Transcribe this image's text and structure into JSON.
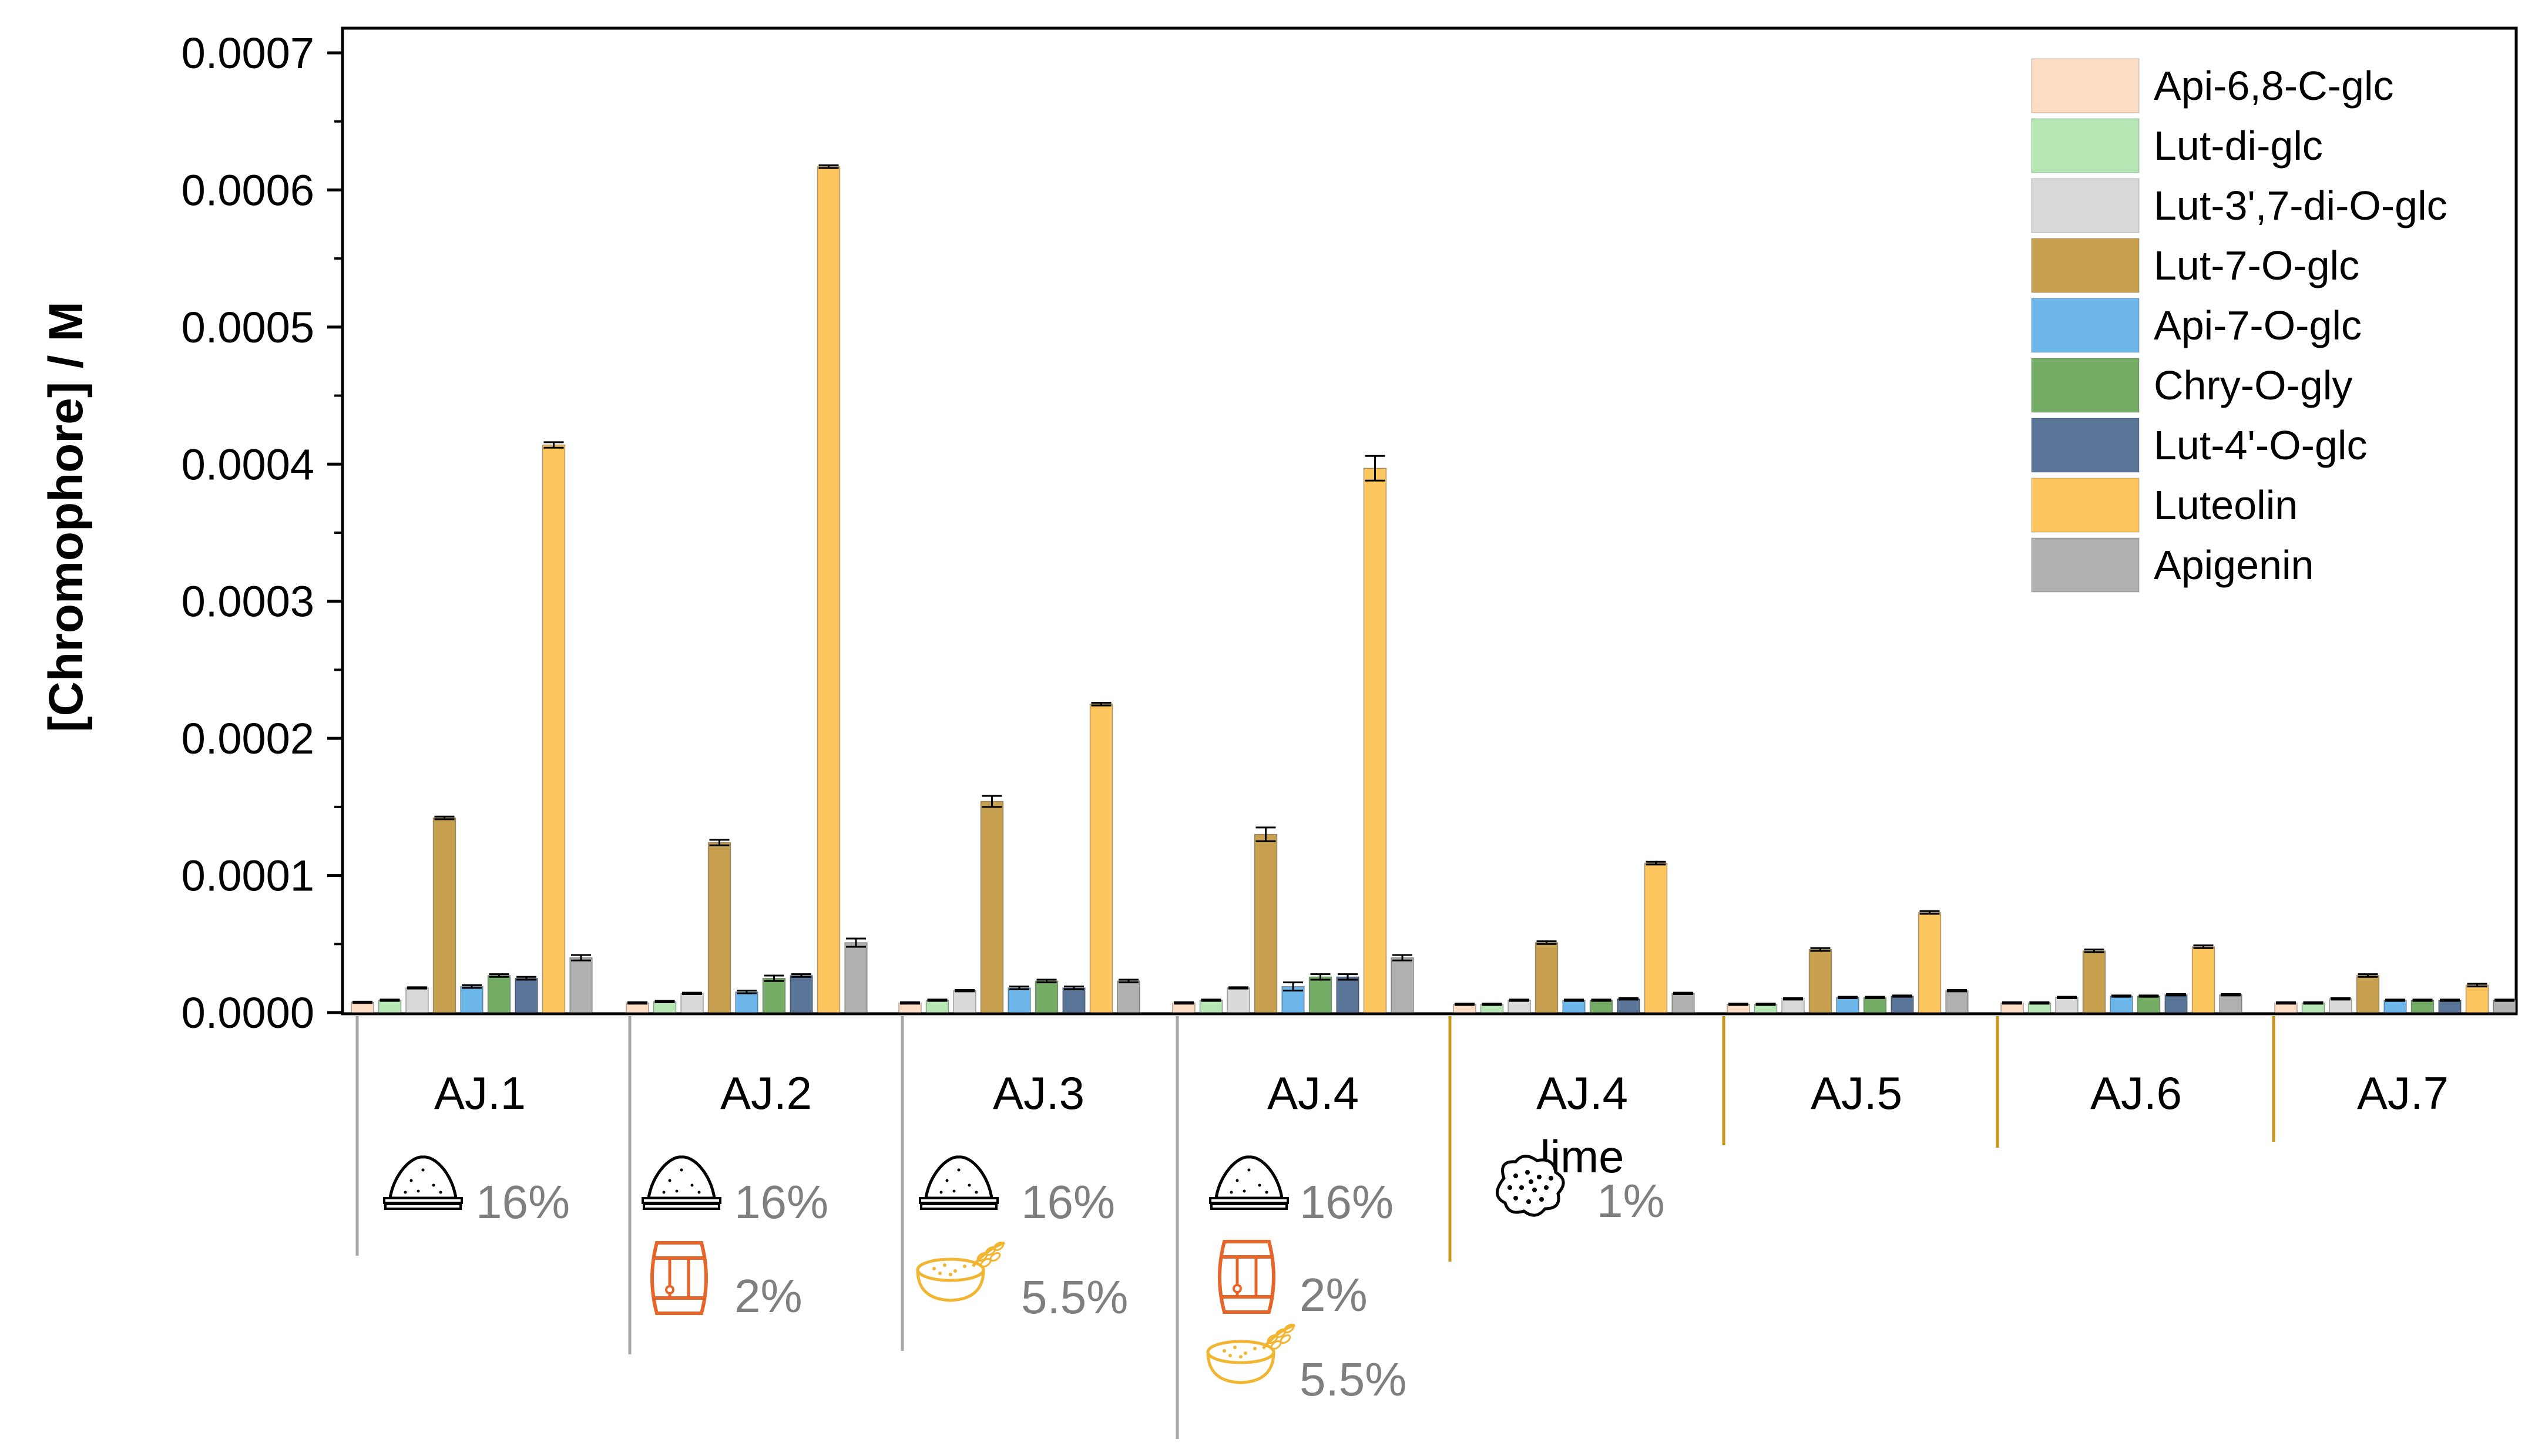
{
  "chart_data": {
    "type": "bar",
    "ylabel": "[Chromophore] / M",
    "ylim": [
      0,
      0.0007
    ],
    "yticks": [
      "0.0000",
      "0.0001",
      "0.0002",
      "0.0003",
      "0.0004",
      "0.0005",
      "0.0006",
      "0.0007"
    ],
    "ytick_values": [
      0,
      0.0001,
      0.0002,
      0.0003,
      0.0004,
      0.0005,
      0.0006,
      0.0007
    ],
    "categories": [
      "AJ.1",
      "AJ.2",
      "AJ.3",
      "AJ.4",
      "AJ.4 lime",
      "AJ.5",
      "AJ.6",
      "AJ.7"
    ],
    "category_lines": [
      [
        "AJ.1"
      ],
      [
        "AJ.2"
      ],
      [
        "AJ.3"
      ],
      [
        "AJ.4"
      ],
      [
        "AJ.4",
        "lime"
      ],
      [
        "AJ.5"
      ],
      [
        "AJ.6"
      ],
      [
        "AJ.7"
      ]
    ],
    "legend_position": "top-right",
    "series": [
      {
        "name": "Api-6,8-C-glc",
        "color": "#fddcc4",
        "values": [
          7.5e-06,
          7e-06,
          7e-06,
          7e-06,
          6e-06,
          6e-06,
          7e-06,
          7e-06
        ],
        "errors": [
          5e-07,
          5e-07,
          5e-07,
          5e-07,
          5e-07,
          5e-07,
          5e-07,
          5e-07
        ]
      },
      {
        "name": "Lut-di-glc",
        "color": "#b5e6b4",
        "values": [
          9e-06,
          8e-06,
          9e-06,
          9e-06,
          6e-06,
          6e-06,
          7e-06,
          7e-06
        ],
        "errors": [
          5e-07,
          5e-07,
          5e-07,
          5e-07,
          5e-07,
          5e-07,
          5e-07,
          5e-07
        ]
      },
      {
        "name": "Lut-3',7-di-O-glc",
        "color": "#d9d9d9",
        "values": [
          1.8e-05,
          1.4e-05,
          1.6e-05,
          1.8e-05,
          9e-06,
          1e-05,
          1.1e-05,
          1e-05
        ],
        "errors": [
          5e-07,
          5e-07,
          5e-07,
          5e-07,
          5e-07,
          5e-07,
          5e-07,
          5e-07
        ]
      },
      {
        "name": "Lut-7-O-glc",
        "color": "#c8a150",
        "values": [
          0.000142,
          0.000124,
          0.000154,
          0.00013,
          5.1e-05,
          4.6e-05,
          4.5e-05,
          2.7e-05
        ],
        "errors": [
          1e-06,
          2e-06,
          4e-06,
          5e-06,
          1e-06,
          1e-06,
          1e-06,
          1e-06
        ]
      },
      {
        "name": "Api-7-O-glc",
        "color": "#6db6ea",
        "values": [
          1.9e-05,
          1.5e-05,
          1.8e-05,
          1.9e-05,
          9e-06,
          1.1e-05,
          1.2e-05,
          9e-06
        ],
        "errors": [
          1e-06,
          1e-06,
          1e-06,
          3e-06,
          5e-07,
          5e-07,
          5e-07,
          5e-07
        ]
      },
      {
        "name": "Chry-O-gly",
        "color": "#75ad66",
        "values": [
          2.7e-05,
          2.5e-05,
          2.3e-05,
          2.6e-05,
          9e-06,
          1.1e-05,
          1.2e-05,
          9e-06
        ],
        "errors": [
          1e-06,
          2e-06,
          1e-06,
          2e-06,
          5e-07,
          5e-07,
          5e-07,
          5e-07
        ]
      },
      {
        "name": "Lut-4'-O-glc",
        "color": "#5a7597",
        "values": [
          2.5e-05,
          2.7e-05,
          1.8e-05,
          2.6e-05,
          1e-05,
          1.2e-05,
          1.3e-05,
          9e-06
        ],
        "errors": [
          1e-06,
          1e-06,
          1e-06,
          2e-06,
          5e-07,
          5e-07,
          5e-07,
          5e-07
        ]
      },
      {
        "name": "Luteolin",
        "color": "#fdc65f",
        "values": [
          0.000414,
          0.000617,
          0.000225,
          0.000397,
          0.000109,
          7.3e-05,
          4.8e-05,
          2e-05
        ],
        "errors": [
          2e-06,
          1e-06,
          1e-06,
          9e-06,
          1e-06,
          1e-06,
          1e-06,
          1e-06
        ]
      },
      {
        "name": "Apigenin",
        "color": "#b0b0b0",
        "values": [
          4e-05,
          5.1e-05,
          2.3e-05,
          4e-05,
          1.4e-05,
          1.6e-05,
          1.3e-05,
          9e-06
        ],
        "errors": [
          2e-06,
          3e-06,
          1e-06,
          2e-06,
          5e-07,
          5e-07,
          5e-07,
          5e-07
        ]
      }
    ],
    "annotations": [
      {
        "group": "AJ.1",
        "items": [
          {
            "icon": "salt-pile-icon",
            "label": "16%"
          }
        ]
      },
      {
        "group": "AJ.2",
        "items": [
          {
            "icon": "salt-pile-icon",
            "label": "16%"
          },
          {
            "icon": "barrel-icon",
            "label": "2%"
          }
        ]
      },
      {
        "group": "AJ.3",
        "items": [
          {
            "icon": "salt-pile-icon",
            "label": "16%"
          },
          {
            "icon": "grain-bowl-icon",
            "label": "5.5%"
          }
        ]
      },
      {
        "group": "AJ.4",
        "items": [
          {
            "icon": "salt-pile-icon",
            "label": "16%"
          },
          {
            "icon": "barrel-icon",
            "label": "2%"
          },
          {
            "icon": "grain-bowl-icon",
            "label": "5.5%"
          }
        ]
      },
      {
        "group": "AJ.4 lime",
        "items": [
          {
            "icon": "lime-powder-icon",
            "label": "1%"
          }
        ]
      }
    ],
    "colors": {
      "separator_gray": "#a6a6a6",
      "separator_gold": "#c8961a",
      "barrel_orange": "#e8652a",
      "grain_gold": "#f2b531",
      "percent_gray": "#7f7f7f"
    }
  }
}
